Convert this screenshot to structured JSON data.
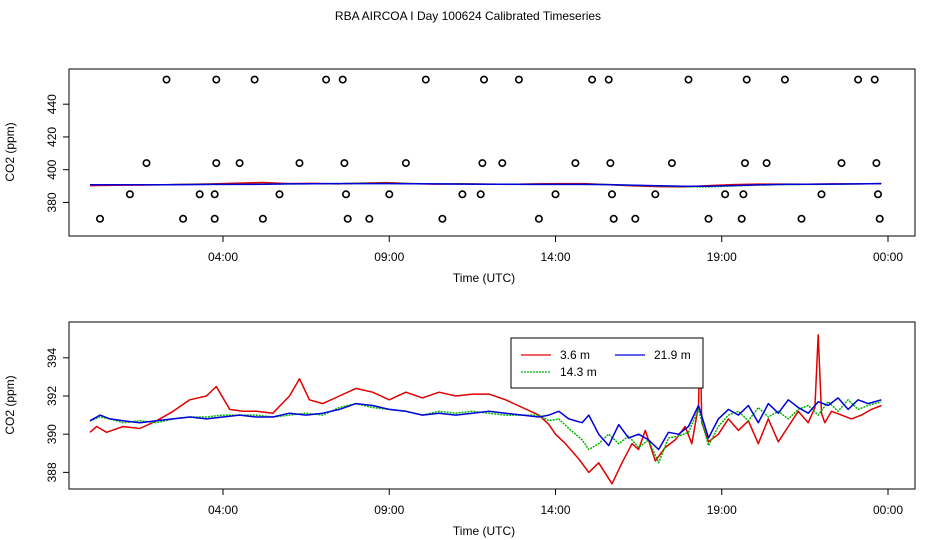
{
  "title": "RBA AIRCOA I  Day 100624  Calibrated Timeseries",
  "colors": {
    "s36": "#e00000",
    "s143": "#00b400",
    "s219": "#0000dd"
  },
  "chart_data": [
    {
      "type": "scatter+line",
      "xlabel": "Time (UTC)",
      "ylabel": "CO2 (ppm)",
      "xlim": [
        0,
        24
      ],
      "ylim": [
        365,
        456
      ],
      "xticks": [
        4,
        9,
        14,
        19,
        24
      ],
      "xtick_labels": [
        "04:00",
        "09:00",
        "14:00",
        "19:00",
        "00:00"
      ],
      "yticks": [
        380,
        400,
        420,
        440
      ],
      "ytick_labels": [
        "380",
        "400",
        "420",
        "440"
      ],
      "calibration_points": [
        {
          "x": 0.3,
          "y": 370
        },
        {
          "x": 1.2,
          "y": 385
        },
        {
          "x": 1.7,
          "y": 404
        },
        {
          "x": 2.3,
          "y": 455
        },
        {
          "x": 2.8,
          "y": 370
        },
        {
          "x": 3.3,
          "y": 385
        },
        {
          "x": 3.75,
          "y": 370
        },
        {
          "x": 3.75,
          "y": 385
        },
        {
          "x": 3.8,
          "y": 404
        },
        {
          "x": 3.8,
          "y": 455
        },
        {
          "x": 4.5,
          "y": 404
        },
        {
          "x": 4.95,
          "y": 455
        },
        {
          "x": 5.2,
          "y": 370
        },
        {
          "x": 5.7,
          "y": 385
        },
        {
          "x": 6.3,
          "y": 404
        },
        {
          "x": 7.1,
          "y": 455
        },
        {
          "x": 7.6,
          "y": 455
        },
        {
          "x": 7.65,
          "y": 404
        },
        {
          "x": 7.7,
          "y": 385
        },
        {
          "x": 7.75,
          "y": 370
        },
        {
          "x": 8.4,
          "y": 370
        },
        {
          "x": 9.0,
          "y": 385
        },
        {
          "x": 9.5,
          "y": 404
        },
        {
          "x": 10.1,
          "y": 455
        },
        {
          "x": 10.6,
          "y": 370
        },
        {
          "x": 11.2,
          "y": 385
        },
        {
          "x": 11.75,
          "y": 385
        },
        {
          "x": 11.8,
          "y": 404
        },
        {
          "x": 11.85,
          "y": 455
        },
        {
          "x": 12.4,
          "y": 404
        },
        {
          "x": 12.9,
          "y": 455
        },
        {
          "x": 13.5,
          "y": 370
        },
        {
          "x": 14.0,
          "y": 385
        },
        {
          "x": 14.6,
          "y": 404
        },
        {
          "x": 15.1,
          "y": 455
        },
        {
          "x": 15.6,
          "y": 455
        },
        {
          "x": 15.65,
          "y": 404
        },
        {
          "x": 15.7,
          "y": 385
        },
        {
          "x": 15.75,
          "y": 370
        },
        {
          "x": 16.4,
          "y": 370
        },
        {
          "x": 17.0,
          "y": 385
        },
        {
          "x": 17.5,
          "y": 404
        },
        {
          "x": 18.0,
          "y": 455
        },
        {
          "x": 18.6,
          "y": 370
        },
        {
          "x": 19.1,
          "y": 385
        },
        {
          "x": 19.6,
          "y": 370
        },
        {
          "x": 19.65,
          "y": 385
        },
        {
          "x": 19.7,
          "y": 404
        },
        {
          "x": 19.75,
          "y": 455
        },
        {
          "x": 20.35,
          "y": 404
        },
        {
          "x": 20.9,
          "y": 455
        },
        {
          "x": 21.4,
          "y": 370
        },
        {
          "x": 22.0,
          "y": 385
        },
        {
          "x": 22.6,
          "y": 404
        },
        {
          "x": 23.1,
          "y": 455
        },
        {
          "x": 23.6,
          "y": 455
        },
        {
          "x": 23.65,
          "y": 404
        },
        {
          "x": 23.7,
          "y": 385
        },
        {
          "x": 23.75,
          "y": 370
        }
      ],
      "series": [
        {
          "key": "s36",
          "values": [
            390.3,
            390.5,
            390.6,
            390.8,
            391.1,
            391.3,
            391.8,
            392.2,
            391.5,
            391.6,
            391.3,
            391.8,
            392.1,
            391.5,
            391.2,
            391.4,
            391.2,
            391.0,
            391.3,
            391.5,
            391.5,
            390.8,
            390.1,
            389.7,
            389.5,
            390.3,
            390.9,
            391.2,
            391.2,
            391.1,
            391.3,
            391.3,
            391.5
          ]
        },
        {
          "key": "s143",
          "values": [
            390.8,
            390.8,
            390.8,
            390.8,
            391.0,
            391.0,
            391.1,
            391.2,
            391.3,
            391.4,
            391.5,
            391.6,
            391.6,
            391.5,
            391.4,
            391.3,
            391.2,
            391.1,
            391.0,
            391.0,
            391.0,
            390.9,
            390.4,
            390.0,
            389.6,
            389.5,
            390.1,
            390.6,
            390.9,
            391.0,
            391.1,
            391.3,
            391.5
          ]
        },
        {
          "key": "s219",
          "values": [
            390.8,
            390.8,
            390.8,
            390.8,
            390.9,
            391.0,
            391.0,
            391.1,
            391.3,
            391.4,
            391.5,
            391.5,
            391.5,
            391.4,
            391.3,
            391.2,
            391.1,
            391.1,
            391.0,
            391.0,
            391.0,
            390.9,
            390.5,
            390.2,
            389.9,
            389.9,
            390.3,
            390.7,
            391.0,
            391.1,
            391.2,
            391.3,
            391.5
          ]
        }
      ]
    },
    {
      "type": "line",
      "xlabel": "Time (UTC)",
      "ylabel": "CO2 (ppm)",
      "xlim": [
        0,
        24
      ],
      "ylim": [
        387.6,
        395.3
      ],
      "xticks": [
        4,
        9,
        14,
        19,
        24
      ],
      "xtick_labels": [
        "04:00",
        "09:00",
        "14:00",
        "19:00",
        "00:00"
      ],
      "yticks": [
        388,
        390,
        392,
        394
      ],
      "ytick_labels": [
        "388",
        "390",
        "392",
        "394"
      ],
      "legend": {
        "position": "top-center",
        "entries": [
          {
            "key": "s36",
            "label": "3.6 m"
          },
          {
            "key": "s219",
            "label": "21.9 m"
          },
          {
            "key": "s143",
            "label": "14.3 m"
          }
        ]
      },
      "series": [
        {
          "key": "s36",
          "x": [
            0.0,
            0.2,
            0.5,
            1.0,
            1.5,
            2.0,
            2.5,
            3.0,
            3.5,
            3.8,
            4.2,
            4.6,
            5.0,
            5.5,
            6.0,
            6.3,
            6.6,
            7.0,
            7.5,
            8.0,
            8.5,
            9.0,
            9.5,
            10.0,
            10.5,
            11.0,
            11.5,
            12.0,
            12.5,
            13.0,
            13.5,
            13.8,
            14.0,
            14.3,
            14.7,
            15.0,
            15.3,
            15.7,
            16.0,
            16.3,
            16.5,
            16.7,
            17.0,
            17.3,
            17.6,
            17.9,
            18.1,
            18.3,
            18.35,
            18.4,
            18.6,
            18.9,
            19.2,
            19.5,
            19.8,
            20.1,
            20.4,
            20.7,
            21.0,
            21.3,
            21.6,
            21.8,
            21.9,
            22.0,
            22.1,
            22.3,
            22.6,
            22.9,
            23.2,
            23.5,
            23.8
          ],
          "y": [
            390.1,
            390.4,
            390.1,
            390.4,
            390.3,
            390.7,
            391.2,
            391.8,
            392.0,
            392.5,
            391.3,
            391.2,
            391.2,
            391.1,
            392.0,
            392.9,
            391.8,
            391.6,
            392.0,
            392.4,
            392.2,
            391.8,
            392.2,
            391.9,
            392.2,
            392.0,
            392.1,
            392.1,
            391.8,
            391.4,
            391.0,
            390.5,
            390.0,
            389.5,
            388.7,
            388.0,
            388.5,
            387.4,
            388.5,
            389.5,
            389.2,
            390.2,
            388.6,
            389.3,
            389.7,
            390.4,
            389.5,
            391.5,
            394.9,
            390.6,
            389.6,
            390.0,
            390.8,
            390.2,
            390.7,
            389.5,
            390.8,
            389.6,
            390.4,
            391.2,
            390.6,
            391.4,
            395.2,
            391.1,
            390.6,
            391.2,
            391.0,
            390.8,
            391.0,
            391.3,
            391.5
          ]
        },
        {
          "key": "s143",
          "x": [
            0.0,
            0.3,
            0.6,
            1.0,
            1.5,
            2.0,
            2.5,
            3.0,
            3.5,
            4.0,
            4.5,
            5.0,
            5.5,
            6.0,
            6.5,
            7.0,
            7.5,
            8.0,
            8.5,
            9.0,
            9.5,
            10.0,
            10.5,
            11.0,
            11.5,
            12.0,
            12.5,
            13.0,
            13.5,
            13.8,
            14.1,
            14.4,
            14.8,
            15.0,
            15.3,
            15.6,
            15.9,
            16.2,
            16.5,
            16.8,
            17.1,
            17.4,
            17.7,
            18.0,
            18.3,
            18.6,
            18.9,
            19.2,
            19.5,
            19.8,
            20.1,
            20.4,
            20.7,
            21.0,
            21.3,
            21.6,
            21.9,
            22.2,
            22.5,
            22.8,
            23.1,
            23.4,
            23.8
          ],
          "y": [
            390.7,
            390.9,
            390.8,
            390.6,
            390.7,
            390.6,
            390.8,
            390.9,
            390.9,
            391.0,
            391.0,
            391.0,
            390.9,
            391.0,
            391.1,
            391.0,
            391.4,
            391.6,
            391.4,
            391.3,
            391.2,
            391.0,
            391.2,
            391.1,
            391.2,
            391.1,
            391.0,
            391.0,
            391.0,
            390.7,
            390.8,
            390.3,
            389.7,
            389.2,
            389.5,
            390.0,
            389.5,
            389.9,
            389.3,
            389.7,
            388.5,
            389.8,
            389.9,
            390.1,
            391.3,
            389.4,
            390.4,
            391.0,
            391.2,
            390.7,
            391.4,
            390.9,
            391.2,
            390.8,
            391.3,
            391.5,
            391.0,
            391.7,
            391.2,
            391.8,
            391.3,
            391.5,
            391.7
          ]
        },
        {
          "key": "s219",
          "x": [
            0.0,
            0.3,
            0.6,
            1.0,
            1.5,
            2.0,
            2.5,
            3.0,
            3.5,
            4.0,
            4.5,
            5.0,
            5.5,
            6.0,
            6.5,
            7.0,
            7.5,
            8.0,
            8.5,
            9.0,
            9.5,
            10.0,
            10.5,
            11.0,
            11.5,
            12.0,
            12.5,
            13.0,
            13.5,
            13.8,
            14.1,
            14.4,
            14.8,
            15.0,
            15.3,
            15.6,
            15.9,
            16.2,
            16.5,
            16.8,
            17.1,
            17.4,
            17.7,
            18.0,
            18.3,
            18.6,
            18.9,
            19.2,
            19.5,
            19.8,
            20.1,
            20.4,
            20.7,
            21.0,
            21.3,
            21.6,
            21.9,
            22.2,
            22.5,
            22.8,
            23.1,
            23.4,
            23.8
          ],
          "y": [
            390.7,
            391.0,
            390.8,
            390.7,
            390.6,
            390.7,
            390.8,
            390.9,
            390.8,
            390.9,
            391.0,
            390.9,
            390.9,
            391.1,
            391.0,
            391.1,
            391.3,
            391.6,
            391.5,
            391.3,
            391.2,
            391.0,
            391.1,
            391.0,
            391.1,
            391.2,
            391.1,
            391.0,
            390.9,
            391.0,
            391.2,
            390.8,
            390.6,
            391.0,
            390.0,
            389.4,
            390.5,
            389.8,
            390.0,
            389.7,
            389.2,
            390.1,
            390.0,
            390.4,
            391.5,
            389.8,
            390.8,
            391.3,
            391.0,
            391.5,
            390.6,
            391.6,
            391.1,
            391.8,
            391.4,
            391.1,
            391.7,
            391.5,
            391.9,
            391.3,
            391.8,
            391.6,
            391.8
          ]
        }
      ]
    }
  ]
}
